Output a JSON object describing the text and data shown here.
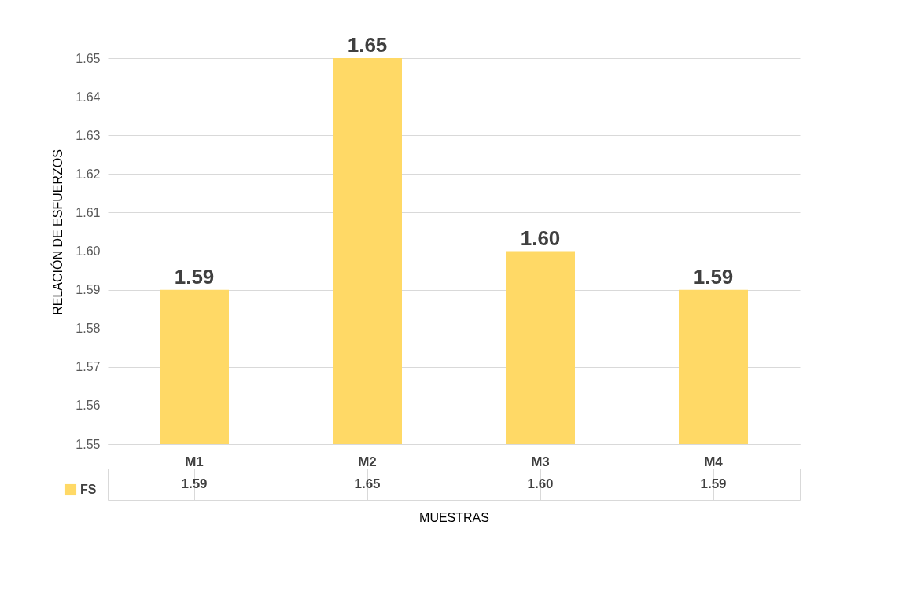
{
  "chart_data": {
    "type": "bar",
    "xlabel": "MUESTRAS",
    "ylabel": "RELACIÓN DE ESFUERZOS",
    "categories": [
      "M1",
      "M2",
      "M3",
      "M4"
    ],
    "series": [
      {
        "name": "FS",
        "color": "#ffd966",
        "values": [
          1.59,
          1.65,
          1.6,
          1.59
        ],
        "value_labels": [
          "1.59",
          "1.65",
          "1.60",
          "1.59"
        ]
      }
    ],
    "ylim": [
      1.55,
      1.66
    ],
    "yticks": [
      1.55,
      1.56,
      1.57,
      1.58,
      1.59,
      {
        "value": 1.6,
        "label": "1.60"
      },
      1.61,
      1.62,
      1.63,
      1.64,
      1.65,
      {
        "value": 1.66,
        "label": null
      }
    ],
    "grid": "y",
    "legend": "bottom left"
  }
}
